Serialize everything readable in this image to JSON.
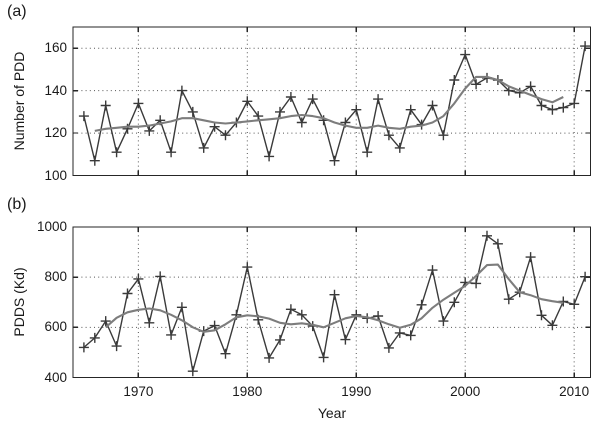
{
  "figure": {
    "xlabel": "Year"
  },
  "chart_data": [
    {
      "type": "line",
      "panel": "a",
      "panel_label": "(a)",
      "ylabel": "Number of PDD",
      "xlim": [
        1964,
        2011.5
      ],
      "ylim": [
        100,
        170
      ],
      "yticks": [
        100,
        120,
        140,
        160
      ],
      "xticks": [
        1970,
        1980,
        1990,
        2000,
        2010
      ],
      "show_xtick_labels": false,
      "grid": "dotted",
      "series": [
        {
          "name": "annual-number-of-pdd",
          "marker": "+",
          "color": "#3a3a3a",
          "x": [
            1965,
            1966,
            1967,
            1968,
            1969,
            1970,
            1971,
            1972,
            1973,
            1974,
            1975,
            1976,
            1977,
            1978,
            1979,
            1980,
            1981,
            1982,
            1983,
            1984,
            1985,
            1986,
            1987,
            1988,
            1989,
            1990,
            1991,
            1992,
            1993,
            1994,
            1995,
            1996,
            1997,
            1998,
            1999,
            2000,
            2001,
            2002,
            2003,
            2004,
            2005,
            2006,
            2007,
            2008,
            2009,
            2010,
            2011
          ],
          "values": [
            128,
            107,
            133,
            111,
            122,
            134,
            121,
            126,
            111,
            140,
            130,
            113,
            123,
            119,
            125,
            135,
            128,
            109,
            130,
            137,
            125,
            136,
            126,
            107,
            125,
            131,
            111,
            136,
            119,
            113,
            131,
            124,
            133,
            119,
            145,
            157,
            143,
            146,
            145,
            140,
            139,
            142,
            133,
            131,
            132,
            134,
            161
          ]
        },
        {
          "name": "smoothed-number-of-pdd",
          "marker": null,
          "color": "#7d7d7d",
          "x": [
            1966,
            1967,
            1968,
            1969,
            1970,
            1971,
            1972,
            1973,
            1974,
            1975,
            1976,
            1977,
            1978,
            1979,
            1980,
            1981,
            1982,
            1983,
            1984,
            1985,
            1986,
            1987,
            1988,
            1989,
            1990,
            1991,
            1992,
            1993,
            1994,
            1995,
            1996,
            1997,
            1998,
            1999,
            2000,
            2001,
            2002,
            2003,
            2004,
            2005,
            2006,
            2007,
            2008,
            2009
          ],
          "values": [
            121,
            122,
            122.5,
            123,
            123,
            123.5,
            124.5,
            125.5,
            127,
            127,
            126,
            125,
            124.5,
            125,
            125.5,
            126,
            126.5,
            127,
            128,
            128.5,
            128,
            127,
            125,
            123.5,
            122.5,
            122.5,
            123.5,
            122.5,
            122,
            123,
            123.5,
            125,
            128,
            134,
            141,
            146.5,
            146.5,
            145,
            142,
            140,
            138,
            136,
            134.5,
            137
          ]
        }
      ]
    },
    {
      "type": "line",
      "panel": "b",
      "panel_label": "(b)",
      "ylabel": "PDDS (Kd)",
      "xlim": [
        1964,
        2011.5
      ],
      "ylim": [
        400,
        1000
      ],
      "yticks": [
        400,
        600,
        800,
        1000
      ],
      "xticks": [
        1970,
        1980,
        1990,
        2000,
        2010
      ],
      "show_xtick_labels": true,
      "grid": "dotted",
      "series": [
        {
          "name": "annual-pdds",
          "marker": "+",
          "color": "#3a3a3a",
          "x": [
            1965,
            1966,
            1967,
            1968,
            1969,
            1970,
            1971,
            1972,
            1973,
            1974,
            1975,
            1976,
            1977,
            1978,
            1979,
            1980,
            1981,
            1982,
            1983,
            1984,
            1985,
            1986,
            1987,
            1988,
            1989,
            1990,
            1991,
            1992,
            1993,
            1994,
            1995,
            1996,
            1997,
            1998,
            1999,
            2000,
            2001,
            2002,
            2003,
            2004,
            2005,
            2006,
            2007,
            2008,
            2009,
            2010,
            2011
          ],
          "values": [
            520,
            558,
            625,
            525,
            735,
            793,
            618,
            803,
            570,
            680,
            425,
            585,
            607,
            495,
            650,
            840,
            630,
            478,
            550,
            672,
            650,
            605,
            480,
            730,
            551,
            650,
            636,
            645,
            518,
            578,
            568,
            690,
            828,
            625,
            700,
            779,
            775,
            965,
            933,
            712,
            740,
            880,
            648,
            608,
            703,
            692,
            802
          ]
        },
        {
          "name": "smoothed-pdds",
          "marker": null,
          "color": "#7d7d7d",
          "x": [
            1967,
            1968,
            1969,
            1970,
            1971,
            1972,
            1973,
            1974,
            1975,
            1976,
            1977,
            1978,
            1979,
            1980,
            1981,
            1982,
            1983,
            1984,
            1985,
            1986,
            1987,
            1988,
            1989,
            1990,
            1991,
            1992,
            1993,
            1994,
            1995,
            1996,
            1997,
            1998,
            1999,
            2000,
            2001,
            2002,
            2003,
            2004,
            2005,
            2006,
            2007,
            2008,
            2009
          ],
          "values": [
            600,
            638,
            660,
            670,
            675,
            668,
            650,
            628,
            600,
            582,
            588,
            612,
            640,
            648,
            644,
            635,
            618,
            612,
            616,
            610,
            600,
            618,
            636,
            645,
            640,
            628,
            612,
            598,
            610,
            636,
            678,
            710,
            738,
            765,
            805,
            848,
            850,
            792,
            740,
            728,
            712,
            704,
            698
          ]
        }
      ]
    }
  ]
}
